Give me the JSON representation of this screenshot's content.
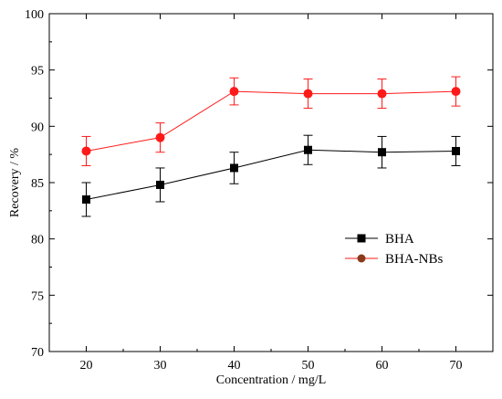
{
  "chart_data": {
    "type": "line",
    "xlabel": "Concentration / mg/L",
    "ylabel": "Recovery / %",
    "x": [
      20,
      30,
      40,
      50,
      60,
      70
    ],
    "xlim": [
      15,
      75
    ],
    "ylim": [
      70,
      100
    ],
    "xticks": [
      "20",
      "30",
      "40",
      "50",
      "60",
      "70"
    ],
    "yticks": [
      "70",
      "75",
      "80",
      "85",
      "90",
      "95",
      "100"
    ],
    "grid": false,
    "legend_position": "center-right",
    "series": [
      {
        "name": "BHA",
        "values": [
          83.5,
          84.8,
          86.3,
          87.9,
          87.7,
          87.8
        ],
        "errors": [
          1.5,
          1.5,
          1.4,
          1.3,
          1.4,
          1.3
        ],
        "color": "#000000",
        "marker": "square"
      },
      {
        "name": "BHA-NBs",
        "values": [
          87.8,
          89.0,
          93.1,
          92.9,
          92.9,
          93.1
        ],
        "errors": [
          1.3,
          1.3,
          1.2,
          1.3,
          1.3,
          1.3
        ],
        "color": "#ff1a1a",
        "marker": "circle"
      }
    ]
  }
}
